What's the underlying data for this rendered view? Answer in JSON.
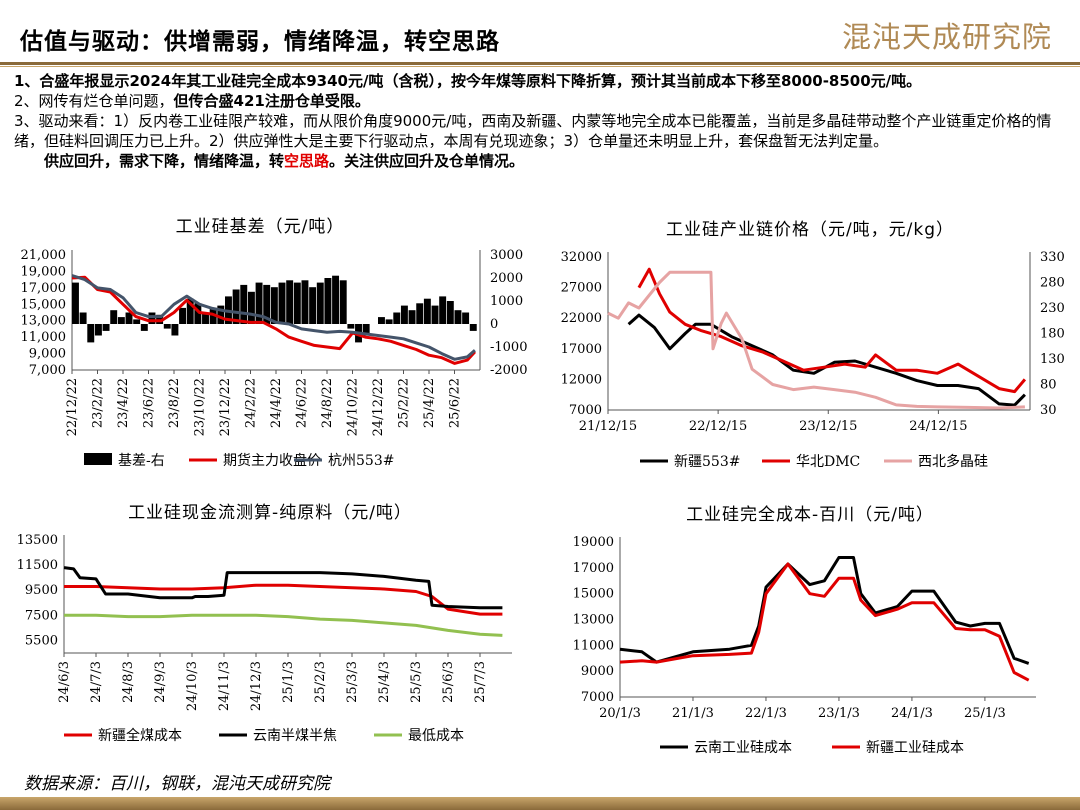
{
  "header": {
    "title": "估值与驱动：供增需弱，情绪降温，转空思路",
    "logo": "混沌天成研究院"
  },
  "notes": {
    "line1_a": "1、合盛年报显示",
    "line1_b": "2024年其工业硅完全成本9340元/吨",
    "line1_c": "（含税），按今年煤等原料下降折算，",
    "line1_d": "预计其当前成本下移至8000-8500元/吨。",
    "line2_a": "2、网传有烂仓单问题，",
    "line2_b": "但传合盛421注册仓单受限。",
    "line3": "3、驱动来看：1）反内卷工业硅限产较难，而从限价角度9000元/吨，西南及新疆、内蒙等地完全成本已能覆盖，当前是多晶硅带动整个产业链重定价格的情绪，但硅料回调压力已上升。2）供应弹性大是主要下行驱动点，本周有兑现迹象；3）仓单量还未明显上升，套保盘暂无法判定量。",
    "line4_a": "供应回升，需求下降，情绪降温，转",
    "line4_b": "空思路",
    "line4_c": "。关注供应回升及仓单情况。"
  },
  "footer": "数据来源：百川，钢联，混沌天成研究院",
  "chart_data": [
    {
      "type": "line",
      "title": "工业硅基差（元/吨）",
      "x_ticks": [
        "22/12/22",
        "23/2/22",
        "23/4/22",
        "23/6/22",
        "23/8/22",
        "23/10/22",
        "23/12/22",
        "24/2/22",
        "24/4/22",
        "24/6/22",
        "24/8/22",
        "24/10/22",
        "24/12/22",
        "25/2/22",
        "25/4/22",
        "25/6/22"
      ],
      "y_left": {
        "ticks": [
          "21,000",
          "19,000",
          "17,000",
          "15,000",
          "13,000",
          "11,000",
          "9,000",
          "7,000"
        ],
        "range": [
          7000,
          21000
        ]
      },
      "y_right": {
        "ticks": [
          "3000",
          "2000",
          "1000",
          "0",
          "-1000",
          "-2000"
        ],
        "range": [
          -2000,
          3000
        ]
      },
      "legend": [
        "基差-右",
        "期货主力收盘价",
        "杭州553#"
      ],
      "colors": [
        "#000000",
        "#e00000",
        "#44546a"
      ],
      "series": [
        {
          "name": "基差-右",
          "axis": "right",
          "type": "bar",
          "x": [
            0,
            0.3,
            0.6,
            0.9,
            1.2,
            1.5,
            1.8,
            2.1,
            2.4,
            2.7,
            3.0,
            3.3,
            3.6,
            3.9,
            4.2,
            4.5,
            4.8,
            5.1,
            5.4,
            5.7,
            6.0,
            6.3,
            6.6,
            6.9,
            7.2,
            7.5,
            7.8,
            8.1,
            8.4,
            8.7,
            9.0,
            9.3,
            9.6,
            9.9,
            10.2,
            10.5,
            10.8,
            11.1,
            11.4,
            11.7,
            12.0,
            12.3,
            12.6,
            12.9,
            13.2,
            13.5,
            13.8,
            14.1,
            14.4,
            14.7,
            15.0,
            15.3,
            15.6
          ],
          "values": [
            1800,
            500,
            -800,
            -500,
            -300,
            600,
            300,
            500,
            200,
            -300,
            500,
            400,
            -200,
            -500,
            700,
            1100,
            900,
            500,
            700,
            800,
            1200,
            1500,
            1700,
            1400,
            1800,
            1700,
            1600,
            1800,
            1900,
            1800,
            1900,
            1600,
            1800,
            2000,
            2100,
            1900,
            -200,
            -800,
            -500,
            0,
            300,
            200,
            500,
            800,
            600,
            900,
            1100,
            800,
            1200,
            1000,
            600,
            500,
            -300
          ]
        },
        {
          "name": "期货主力收盘价",
          "axis": "left",
          "x": [
            0,
            0.5,
            1,
            1.5,
            2,
            2.5,
            3,
            3.5,
            4,
            4.5,
            5,
            5.5,
            6,
            6.5,
            7,
            7.5,
            8,
            8.5,
            9,
            9.5,
            10,
            10.5,
            11,
            11.5,
            12,
            12.5,
            13,
            13.5,
            14,
            14.5,
            15,
            15.5,
            15.8
          ],
          "y": [
            18200,
            18300,
            16800,
            16500,
            15000,
            13500,
            13000,
            13000,
            14000,
            15500,
            14000,
            13800,
            13200,
            13000,
            12800,
            12800,
            12000,
            11000,
            10500,
            10000,
            9800,
            9600,
            11500,
            11000,
            10800,
            10500,
            10000,
            9500,
            8800,
            8500,
            7800,
            8200,
            9200
          ]
        },
        {
          "name": "杭州553#",
          "axis": "left",
          "x": [
            0,
            0.5,
            1,
            1.5,
            2,
            2.5,
            3,
            3.5,
            4,
            4.5,
            5,
            5.5,
            6,
            6.5,
            7,
            7.5,
            8,
            8.5,
            9,
            9.5,
            10,
            10.5,
            11,
            11.5,
            12,
            12.5,
            13,
            13.5,
            14,
            14.5,
            15,
            15.5,
            15.8
          ],
          "y": [
            18500,
            18000,
            17000,
            16800,
            15800,
            14000,
            13500,
            13500,
            15000,
            16000,
            15000,
            14500,
            14200,
            14000,
            13800,
            13500,
            12800,
            12600,
            12000,
            11800,
            11600,
            11700,
            11600,
            11400,
            11200,
            11000,
            10800,
            10300,
            9800,
            9000,
            8300,
            8600,
            9400
          ]
        }
      ]
    },
    {
      "type": "line",
      "title": "工业硅产业链价格（元/吨，元/kg）",
      "x_ticks": [
        "21/12/15",
        "22/12/15",
        "23/12/15",
        "24/12/15"
      ],
      "y_left": {
        "ticks": [
          "32000",
          "27000",
          "22000",
          "17000",
          "12000",
          "7000"
        ],
        "range": [
          7000,
          32000
        ]
      },
      "y_right": {
        "ticks": [
          "330",
          "280",
          "230",
          "180",
          "130",
          "80",
          "30"
        ],
        "range": [
          30,
          330
        ]
      },
      "legend": [
        "新疆553#",
        "华北DMC",
        "西北多晶硅"
      ],
      "colors": [
        "#000000",
        "#e00000",
        "#e6a3a3"
      ],
      "series": [
        {
          "name": "新疆553#",
          "axis": "left",
          "x": [
            0.2,
            0.3,
            0.45,
            0.6,
            0.75,
            0.85,
            1.0,
            1.2,
            1.4,
            1.6,
            1.8,
            2.0,
            2.2,
            2.4,
            2.6,
            2.8,
            3.0,
            3.2,
            3.4,
            3.6,
            3.8,
            3.95,
            4.05
          ],
          "y": [
            21000,
            22500,
            20500,
            17000,
            19500,
            21000,
            21000,
            19000,
            17500,
            16000,
            13500,
            13000,
            14800,
            15000,
            14000,
            13000,
            11800,
            11000,
            11000,
            10500,
            8000,
            7800,
            9500
          ]
        },
        {
          "name": "华北DMC",
          "axis": "left",
          "x": [
            0.3,
            0.4,
            0.5,
            0.6,
            0.75,
            0.9,
            1.1,
            1.3,
            1.5,
            1.7,
            1.9,
            2.1,
            2.3,
            2.5,
            2.6,
            2.8,
            3.0,
            3.2,
            3.4,
            3.6,
            3.8,
            3.95,
            4.05
          ],
          "y": [
            27000,
            30000,
            26000,
            23000,
            21000,
            20000,
            19000,
            17500,
            16500,
            15000,
            13500,
            14000,
            14500,
            14000,
            16000,
            13500,
            13500,
            13000,
            14500,
            12500,
            10500,
            10000,
            12000
          ]
        },
        {
          "name": "西北多晶硅",
          "axis": "right",
          "x": [
            0,
            0.1,
            0.2,
            0.3,
            0.5,
            0.6,
            0.8,
            1.0,
            1.02,
            1.1,
            1.15,
            1.3,
            1.4,
            1.6,
            1.8,
            2.0,
            2.2,
            2.4,
            2.6,
            2.8,
            3.0,
            3.2,
            3.5,
            3.8,
            4.05
          ],
          "y": [
            220,
            210,
            240,
            230,
            280,
            300,
            300,
            300,
            150,
            200,
            220,
            170,
            110,
            80,
            70,
            75,
            70,
            65,
            55,
            40,
            37,
            36,
            35,
            34,
            36
          ]
        }
      ]
    },
    {
      "type": "line",
      "title": "工业硅现金流测算-纯原料（元/吨）",
      "x_ticks": [
        "24/6/3",
        "24/7/3",
        "24/8/3",
        "24/9/3",
        "24/10/3",
        "24/11/3",
        "24/12/3",
        "25/1/3",
        "25/2/3",
        "25/3/3",
        "25/4/3",
        "25/5/3",
        "25/6/3",
        "25/7/3"
      ],
      "y": {
        "ticks": [
          "13500",
          "11500",
          "9500",
          "7500",
          "5500"
        ],
        "range": [
          4500,
          13500
        ]
      },
      "legend": [
        "新疆全煤成本",
        "云南半煤半焦",
        "最低成本"
      ],
      "colors": [
        "#e00000",
        "#000000",
        "#92c050"
      ],
      "series": [
        {
          "name": "新疆全煤成本",
          "x": [
            0,
            1,
            2,
            3,
            4,
            5,
            6,
            7,
            8,
            9,
            10,
            11,
            11.5,
            12,
            13,
            13.7
          ],
          "y": [
            9800,
            9800,
            9700,
            9600,
            9600,
            9700,
            9900,
            9900,
            9800,
            9700,
            9600,
            9400,
            9000,
            8000,
            7600,
            7600
          ]
        },
        {
          "name": "云南半煤半焦",
          "x": [
            0,
            0.3,
            0.5,
            1,
            1.3,
            2,
            3,
            4,
            4.1,
            4.5,
            5,
            5.1,
            6,
            7,
            8,
            9,
            10,
            11,
            11.4,
            11.5,
            12,
            13,
            13.7
          ],
          "y": [
            11300,
            11200,
            10500,
            10400,
            9200,
            9200,
            8900,
            8900,
            9000,
            9000,
            9100,
            10900,
            10900,
            10900,
            10900,
            10800,
            10600,
            10300,
            10200,
            8300,
            8200,
            8100,
            8100
          ]
        },
        {
          "name": "最低成本",
          "x": [
            0,
            1,
            2,
            3,
            4,
            5,
            6,
            7,
            8,
            9,
            10,
            11,
            12,
            13,
            13.7
          ],
          "y": [
            7500,
            7500,
            7400,
            7400,
            7500,
            7500,
            7500,
            7400,
            7200,
            7100,
            6900,
            6700,
            6300,
            6000,
            5900
          ]
        }
      ]
    },
    {
      "type": "line",
      "title": "工业硅完全成本-百川（元/吨）",
      "x_ticks": [
        "20/1/3",
        "21/1/3",
        "22/1/3",
        "23/1/3",
        "24/1/3",
        "25/1/3"
      ],
      "y": {
        "ticks": [
          "19000",
          "17000",
          "15000",
          "13000",
          "11000",
          "9000",
          "7000"
        ],
        "range": [
          7000,
          19000
        ]
      },
      "legend": [
        "云南工业硅成本",
        "新疆工业硅成本"
      ],
      "colors": [
        "#000000",
        "#e00000"
      ],
      "series": [
        {
          "name": "云南工业硅成本",
          "x": [
            0,
            0.3,
            0.5,
            1,
            1.5,
            1.8,
            1.9,
            2.0,
            2.3,
            2.6,
            2.8,
            3.0,
            3.2,
            3.3,
            3.5,
            3.8,
            4.0,
            4.3,
            4.6,
            4.8,
            5.0,
            5.2,
            5.4,
            5.6
          ],
          "y": [
            10700,
            10500,
            9700,
            10500,
            10700,
            11000,
            12500,
            15500,
            17300,
            15700,
            16000,
            17800,
            17800,
            15000,
            13500,
            14000,
            15200,
            15200,
            12800,
            12500,
            12700,
            12700,
            10000,
            9600
          ]
        },
        {
          "name": "新疆工业硅成本",
          "x": [
            0,
            0.3,
            0.5,
            1,
            1.5,
            1.8,
            1.9,
            2.0,
            2.3,
            2.6,
            2.8,
            3.0,
            3.2,
            3.3,
            3.5,
            3.8,
            4.0,
            4.3,
            4.6,
            4.8,
            5.0,
            5.2,
            5.4,
            5.6
          ],
          "y": [
            9700,
            9800,
            9700,
            10200,
            10300,
            10400,
            12000,
            15000,
            17300,
            15000,
            14800,
            16200,
            16200,
            14500,
            13300,
            13800,
            14300,
            14300,
            12300,
            12200,
            12200,
            11700,
            8900,
            8300
          ]
        }
      ]
    }
  ]
}
